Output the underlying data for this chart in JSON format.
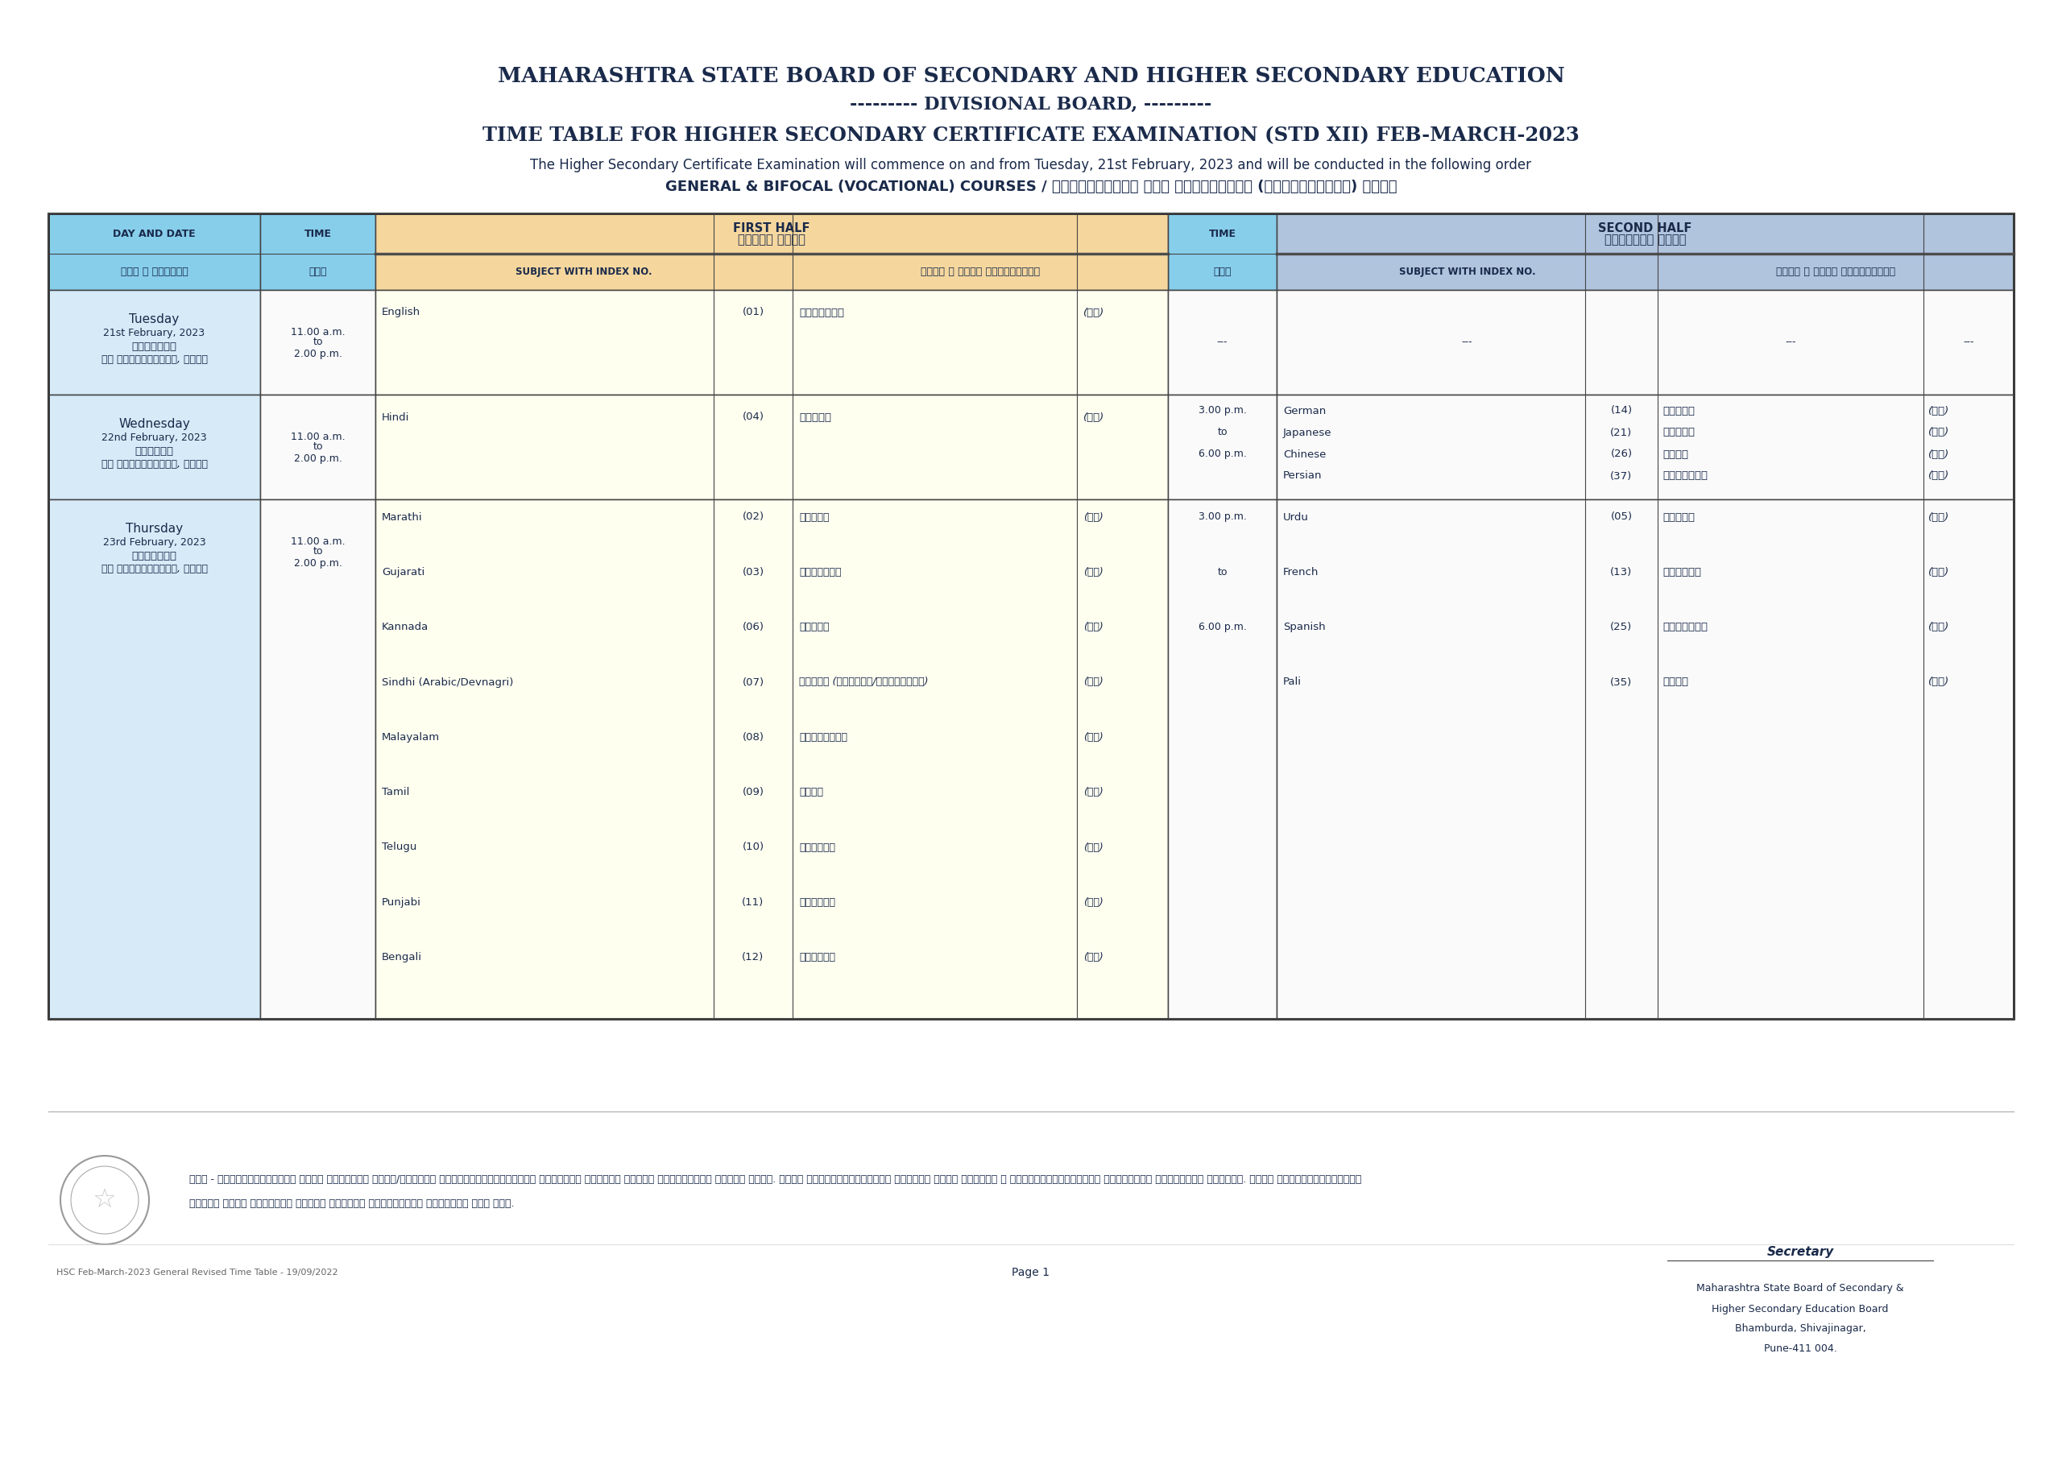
{
  "bg_color": "#ffffff",
  "title1": "MAHARASHTRA STATE BOARD OF SECONDARY AND HIGHER SECONDARY EDUCATION",
  "title2": "--------- DIVISIONAL BOARD, ---------",
  "title3_regular": "TIME TABLE FOR HIGHER SECONDARY CERTIFICATE EXAMINATION (STD XII) ",
  "title3_bold": "FEB-MARCH-2023",
  "subtitle1": "The Higher Secondary Certificate Examination will commence on and from Tuesday, 21st February, 2023 and will be conducted in the following order",
  "subtitle1_bold_part": "Tuesday, 21st February, 2023",
  "subtitle2": "GENERAL & BIFOCAL (VOCATIONAL) COURSES / सर्वसाधारण आणि द्विलक्षी (व्यावसायिक) विषय",
  "header_color_blue": "#87CEEB",
  "header_color_orange": "#F5D79E",
  "header_color_lavender": "#B0C4DE",
  "row_color_blue_light": "#D6EAF8",
  "row_color_cream": "#FFFFF0",
  "dark_navy": "#1a2a4a",
  "footer_note": "टिप - परीक्षेपूर्वी उच्च माध्मिक शाळा/कनिष्ठ महाविद्यालयांकडे देण्यात येणारे छापील वेळापत्रक अंतिम असेल. त्या वेळापत्रकावरून खात्री करून घ्यावी व विद्यार्थ्यांनी परीक्षेस प्रविष्ट व्हावे. अन्य संकेतस्थळावरील",
  "footer_note2": "किंवा अन्य यंत्रणे छापून केलेले वेळापत्रक ग्राह्य धरू नये.",
  "footer_left": "HSC Feb-March-2023 General Revised Time Table - 19/09/2022",
  "footer_center": "Page 1",
  "footer_right1": "Secretary",
  "footer_right2": "Maharashtra State Board of Secondary &",
  "footer_right3": "Higher Secondary Education Board",
  "footer_right4": "Bhamburda, Shivajinagar,",
  "footer_right5": "Pune-411 004."
}
